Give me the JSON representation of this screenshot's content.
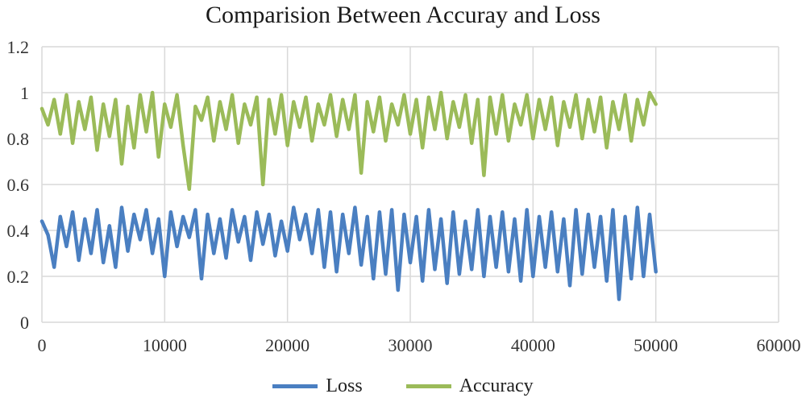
{
  "chart_data": {
    "type": "line",
    "title": "Comparision Between Accuray and Loss",
    "xlim": [
      0,
      60000
    ],
    "ylim": [
      0,
      1.2
    ],
    "x_ticks": [
      "0",
      "10000",
      "20000",
      "30000",
      "40000",
      "50000",
      "60000"
    ],
    "y_ticks": [
      "0",
      "0.2",
      "0.4",
      "0.6",
      "0.8",
      "1",
      "1.2"
    ],
    "grid": true,
    "legend_position": "bottom",
    "series": [
      {
        "name": "Loss",
        "color": "#4a7fc1",
        "x": [
          0,
          500,
          1000,
          1500,
          2000,
          2500,
          3000,
          3500,
          4000,
          4500,
          5000,
          5500,
          6000,
          6500,
          7000,
          7500,
          8000,
          8500,
          9000,
          9500,
          10000,
          10500,
          11000,
          11500,
          12000,
          12500,
          13000,
          13500,
          14000,
          14500,
          15000,
          15500,
          16000,
          16500,
          17000,
          17500,
          18000,
          18500,
          19000,
          19500,
          20000,
          20500,
          21000,
          21500,
          22000,
          22500,
          23000,
          23500,
          24000,
          24500,
          25000,
          25500,
          26000,
          26500,
          27000,
          27500,
          28000,
          28500,
          29000,
          29500,
          30000,
          30500,
          31000,
          31500,
          32000,
          32500,
          33000,
          33500,
          34000,
          34500,
          35000,
          35500,
          36000,
          36500,
          37000,
          37500,
          38000,
          38500,
          39000,
          39500,
          40000,
          40500,
          41000,
          41500,
          42000,
          42500,
          43000,
          43500,
          44000,
          44500,
          45000,
          45500,
          46000,
          46500,
          47000,
          47500,
          48000,
          48500,
          49000,
          49500,
          50000
        ],
        "values": [
          0.44,
          0.38,
          0.24,
          0.46,
          0.33,
          0.48,
          0.27,
          0.45,
          0.3,
          0.49,
          0.26,
          0.42,
          0.24,
          0.5,
          0.31,
          0.47,
          0.36,
          0.49,
          0.3,
          0.45,
          0.2,
          0.48,
          0.33,
          0.46,
          0.37,
          0.49,
          0.19,
          0.47,
          0.3,
          0.45,
          0.28,
          0.49,
          0.35,
          0.46,
          0.27,
          0.48,
          0.34,
          0.47,
          0.29,
          0.44,
          0.31,
          0.5,
          0.36,
          0.47,
          0.3,
          0.49,
          0.24,
          0.48,
          0.22,
          0.47,
          0.3,
          0.5,
          0.25,
          0.46,
          0.19,
          0.48,
          0.21,
          0.49,
          0.14,
          0.47,
          0.26,
          0.46,
          0.18,
          0.49,
          0.23,
          0.45,
          0.17,
          0.48,
          0.21,
          0.44,
          0.23,
          0.49,
          0.2,
          0.46,
          0.24,
          0.48,
          0.22,
          0.45,
          0.18,
          0.49,
          0.2,
          0.46,
          0.24,
          0.48,
          0.22,
          0.45,
          0.16,
          0.49,
          0.21,
          0.47,
          0.24,
          0.46,
          0.18,
          0.49,
          0.1,
          0.46,
          0.19,
          0.5,
          0.2,
          0.47,
          0.22
        ]
      },
      {
        "name": "Accuracy",
        "color": "#9bbb59",
        "x": [
          0,
          500,
          1000,
          1500,
          2000,
          2500,
          3000,
          3500,
          4000,
          4500,
          5000,
          5500,
          6000,
          6500,
          7000,
          7500,
          8000,
          8500,
          9000,
          9500,
          10000,
          10500,
          11000,
          11500,
          12000,
          12500,
          13000,
          13500,
          14000,
          14500,
          15000,
          15500,
          16000,
          16500,
          17000,
          17500,
          18000,
          18500,
          19000,
          19500,
          20000,
          20500,
          21000,
          21500,
          22000,
          22500,
          23000,
          23500,
          24000,
          24500,
          25000,
          25500,
          26000,
          26500,
          27000,
          27500,
          28000,
          28500,
          29000,
          29500,
          30000,
          30500,
          31000,
          31500,
          32000,
          32500,
          33000,
          33500,
          34000,
          34500,
          35000,
          35500,
          36000,
          36500,
          37000,
          37500,
          38000,
          38500,
          39000,
          39500,
          40000,
          40500,
          41000,
          41500,
          42000,
          42500,
          43000,
          43500,
          44000,
          44500,
          45000,
          45500,
          46000,
          46500,
          47000,
          47500,
          48000,
          48500,
          49000,
          49500,
          50000
        ],
        "values": [
          0.93,
          0.86,
          0.97,
          0.82,
          0.99,
          0.78,
          0.96,
          0.84,
          0.98,
          0.75,
          0.95,
          0.81,
          0.97,
          0.69,
          0.94,
          0.76,
          0.99,
          0.83,
          1.0,
          0.72,
          0.95,
          0.85,
          0.99,
          0.77,
          0.58,
          0.94,
          0.88,
          0.98,
          0.79,
          0.96,
          0.84,
          0.99,
          0.78,
          0.95,
          0.86,
          0.98,
          0.6,
          0.97,
          0.82,
          0.99,
          0.77,
          0.96,
          0.85,
          0.98,
          0.79,
          0.95,
          0.86,
          0.99,
          0.81,
          0.97,
          0.84,
          0.99,
          0.65,
          0.96,
          0.83,
          0.98,
          0.79,
          0.95,
          0.86,
          0.99,
          0.82,
          0.97,
          0.76,
          0.98,
          0.84,
          1.0,
          0.8,
          0.96,
          0.85,
          0.99,
          0.78,
          0.97,
          0.64,
          0.98,
          0.82,
          0.99,
          0.79,
          0.95,
          0.86,
          0.99,
          0.8,
          0.97,
          0.84,
          0.98,
          0.77,
          0.96,
          0.85,
          0.99,
          0.8,
          0.97,
          0.83,
          0.98,
          0.76,
          0.96,
          0.84,
          0.99,
          0.79,
          0.97,
          0.86,
          1.0,
          0.95
        ]
      }
    ]
  }
}
